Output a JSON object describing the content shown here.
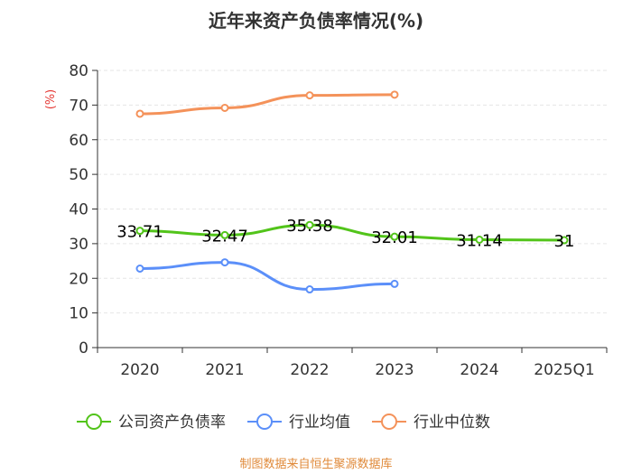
{
  "chart_data": {
    "type": "line",
    "title": "近年来资产负债率情况(%)",
    "ylabel": "(%)",
    "categories": [
      "2020",
      "2021",
      "2022",
      "2023",
      "2024",
      "2025Q1"
    ],
    "ylim": [
      0,
      80
    ],
    "yticks": [
      0,
      10,
      20,
      30,
      40,
      50,
      60,
      70,
      80
    ],
    "grid": true,
    "legend_position": "bottom",
    "series": [
      {
        "name": "公司资产负债率",
        "color": "#52c41a",
        "values": [
          33.71,
          32.47,
          35.38,
          32.01,
          31.14,
          31
        ],
        "show_labels": true
      },
      {
        "name": "行业均值",
        "color": "#5b8ff9",
        "values": [
          22.8,
          24.6,
          16.8,
          18.4,
          null,
          null
        ],
        "show_labels": false
      },
      {
        "name": "行业中位数",
        "color": "#f4925a",
        "values": [
          67.5,
          69.2,
          72.8,
          73.0,
          null,
          null
        ],
        "show_labels": false
      }
    ],
    "data_labels": [
      "33.71",
      "32.47",
      "35.38",
      "32.01",
      "31.14",
      "31"
    ],
    "unit_color": "#e53935"
  },
  "source": {
    "text": "制图数据来自恒生聚源数据库",
    "color": "#e08a3a"
  }
}
